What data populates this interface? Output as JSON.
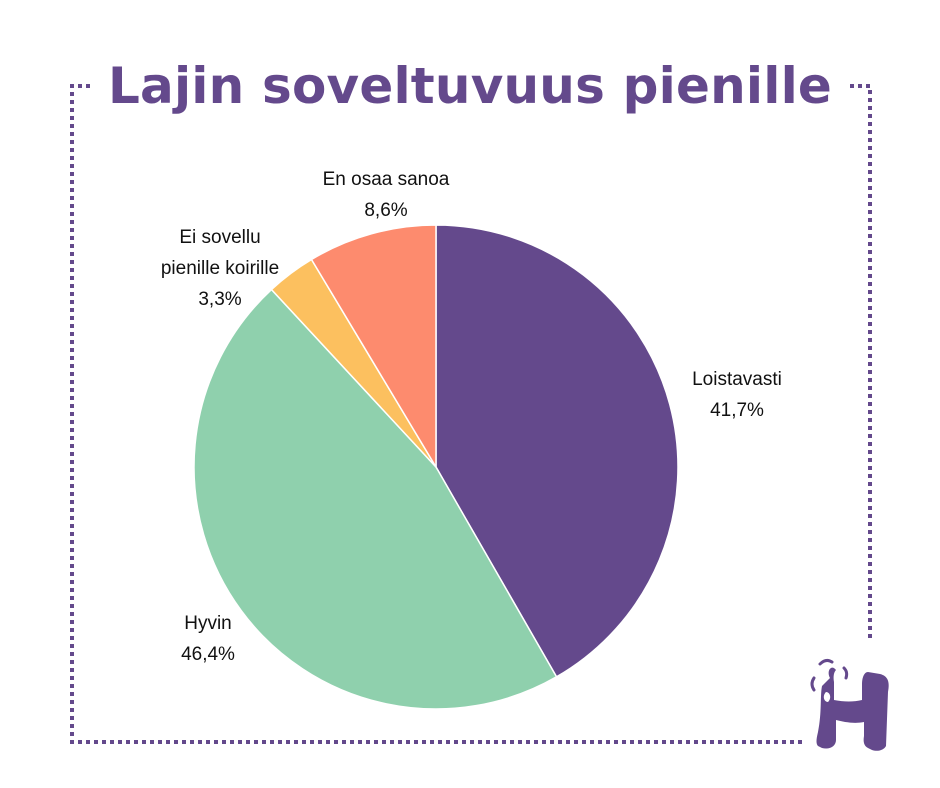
{
  "chart_data": {
    "type": "pie",
    "title": "Lajin soveltuvuus pienille",
    "slices": [
      {
        "label": "Loistavasti",
        "value": 41.7,
        "value_text": "41,7%",
        "color": "#64498c"
      },
      {
        "label": "Hyvin",
        "value": 46.4,
        "value_text": "46,4%",
        "color": "#8fd0ad"
      },
      {
        "label": "Ei sovellu pienille koirille",
        "label_lines": [
          "Ei sovellu",
          "pienille koirille"
        ],
        "value": 3.3,
        "value_text": "3,3%",
        "color": "#fcc05f"
      },
      {
        "label": "En osaa sanoa",
        "value": 8.6,
        "value_text": "8,6%",
        "color": "#fd8b6e"
      }
    ],
    "start": "12 o'clock",
    "direction": "clockwise",
    "legend": "none (labels beside slices)"
  },
  "frame": {
    "style": "dotted",
    "color": "#64498c"
  },
  "logo": {
    "icon": "h-letter-logo-icon",
    "color": "#64498c"
  }
}
